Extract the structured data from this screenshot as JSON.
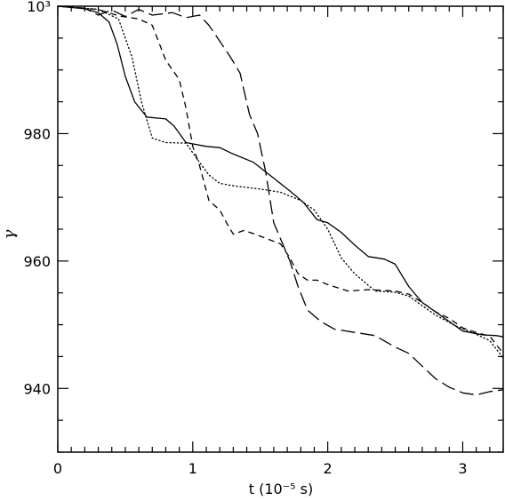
{
  "chart_data": {
    "type": "line",
    "title": "",
    "xlabel": "t (10⁻⁵ s)",
    "ylabel": "γ",
    "xlim": [
      0,
      3.3
    ],
    "ylim": [
      930,
      1000
    ],
    "grid": false,
    "legend": "none",
    "x_ticks": [
      {
        "value": 0,
        "label": "0"
      },
      {
        "value": 1,
        "label": "1"
      },
      {
        "value": 2,
        "label": "2"
      },
      {
        "value": 3,
        "label": "3"
      }
    ],
    "y_ticks": [
      {
        "value": 940,
        "label": "940"
      },
      {
        "value": 960,
        "label": "960"
      },
      {
        "value": 980,
        "label": "980"
      },
      {
        "value": 1000,
        "label": "10³"
      }
    ],
    "series": [
      {
        "style": "solid",
        "points": [
          [
            0,
            1000
          ],
          [
            0.2,
            999.6
          ],
          [
            0.3,
            999.0
          ],
          [
            0.38,
            997.5
          ],
          [
            0.44,
            994
          ],
          [
            0.5,
            989
          ],
          [
            0.57,
            985
          ],
          [
            0.66,
            982.6
          ],
          [
            0.8,
            982.3
          ],
          [
            0.86,
            981.2
          ],
          [
            0.95,
            978.6
          ],
          [
            1.1,
            978
          ],
          [
            1.2,
            977.8
          ],
          [
            1.3,
            976.8
          ],
          [
            1.45,
            975.5
          ],
          [
            1.6,
            973
          ],
          [
            1.72,
            971
          ],
          [
            1.82,
            969.2
          ],
          [
            1.92,
            966.5
          ],
          [
            2.0,
            966
          ],
          [
            2.1,
            964.5
          ],
          [
            2.2,
            962.5
          ],
          [
            2.3,
            960.7
          ],
          [
            2.42,
            960.3
          ],
          [
            2.5,
            959.5
          ],
          [
            2.6,
            956
          ],
          [
            2.7,
            953.5
          ],
          [
            2.8,
            952
          ],
          [
            2.9,
            950.5
          ],
          [
            3.0,
            949
          ],
          [
            3.15,
            948.4
          ],
          [
            3.25,
            948.3
          ],
          [
            3.3,
            948.1
          ]
        ]
      },
      {
        "style": "dotted",
        "points": [
          [
            0,
            1000
          ],
          [
            0.3,
            999.5
          ],
          [
            0.45,
            998
          ],
          [
            0.55,
            992
          ],
          [
            0.62,
            985
          ],
          [
            0.7,
            979.3
          ],
          [
            0.8,
            978.6
          ],
          [
            0.95,
            978.5
          ],
          [
            1.05,
            975.5
          ],
          [
            1.12,
            973.5
          ],
          [
            1.2,
            972.2
          ],
          [
            1.3,
            971.8
          ],
          [
            1.5,
            971.3
          ],
          [
            1.65,
            970.8
          ],
          [
            1.8,
            969.5
          ],
          [
            1.9,
            968
          ],
          [
            2.0,
            965
          ],
          [
            2.1,
            960.5
          ],
          [
            2.2,
            958
          ],
          [
            2.35,
            955.3
          ],
          [
            2.5,
            955.1
          ],
          [
            2.6,
            954.5
          ],
          [
            2.7,
            953
          ],
          [
            2.8,
            951.5
          ],
          [
            2.95,
            949.8
          ],
          [
            3.1,
            948.5
          ],
          [
            3.2,
            947.5
          ],
          [
            3.3,
            944.8
          ]
        ]
      },
      {
        "style": "short-dash",
        "points": [
          [
            0,
            1000
          ],
          [
            0.3,
            999.5
          ],
          [
            0.45,
            998.5
          ],
          [
            0.6,
            998
          ],
          [
            0.7,
            997
          ],
          [
            0.8,
            991.5
          ],
          [
            0.9,
            988.5
          ],
          [
            0.95,
            984
          ],
          [
            1.0,
            978
          ],
          [
            1.05,
            975
          ],
          [
            1.12,
            969.5
          ],
          [
            1.2,
            968
          ],
          [
            1.25,
            966
          ],
          [
            1.3,
            964.2
          ],
          [
            1.38,
            964.8
          ],
          [
            1.45,
            964.3
          ],
          [
            1.55,
            963.5
          ],
          [
            1.65,
            962.7
          ],
          [
            1.72,
            960.5
          ],
          [
            1.78,
            958
          ],
          [
            1.85,
            957
          ],
          [
            1.92,
            957
          ],
          [
            2.0,
            956.3
          ],
          [
            2.15,
            955.3
          ],
          [
            2.3,
            955.5
          ],
          [
            2.5,
            955.3
          ],
          [
            2.6,
            954.8
          ],
          [
            2.7,
            953.5
          ],
          [
            2.8,
            952
          ],
          [
            2.9,
            951
          ],
          [
            3.0,
            949.5
          ],
          [
            3.1,
            948.8
          ],
          [
            3.2,
            948.2
          ],
          [
            3.3,
            945.5
          ]
        ]
      },
      {
        "style": "long-dash",
        "points": [
          [
            0,
            1000
          ],
          [
            0.2,
            999.7
          ],
          [
            0.3,
            998.6
          ],
          [
            0.4,
            999.4
          ],
          [
            0.5,
            998.4
          ],
          [
            0.6,
            999.5
          ],
          [
            0.7,
            998.6
          ],
          [
            0.85,
            999
          ],
          [
            0.95,
            998.2
          ],
          [
            1.05,
            998.6
          ],
          [
            1.12,
            997
          ],
          [
            1.2,
            994.5
          ],
          [
            1.28,
            992
          ],
          [
            1.35,
            989.5
          ],
          [
            1.42,
            983
          ],
          [
            1.48,
            980
          ],
          [
            1.54,
            974
          ],
          [
            1.6,
            966
          ],
          [
            1.66,
            963
          ],
          [
            1.72,
            960
          ],
          [
            1.78,
            956
          ],
          [
            1.85,
            952.3
          ],
          [
            1.95,
            950.5
          ],
          [
            2.05,
            949.3
          ],
          [
            2.2,
            948.8
          ],
          [
            2.35,
            948.3
          ],
          [
            2.5,
            946.5
          ],
          [
            2.6,
            945.5
          ],
          [
            2.7,
            943.5
          ],
          [
            2.8,
            941.5
          ],
          [
            2.9,
            940.2
          ],
          [
            3.0,
            939.3
          ],
          [
            3.1,
            939.0
          ],
          [
            3.2,
            939.5
          ],
          [
            3.3,
            939.8
          ]
        ]
      }
    ]
  }
}
